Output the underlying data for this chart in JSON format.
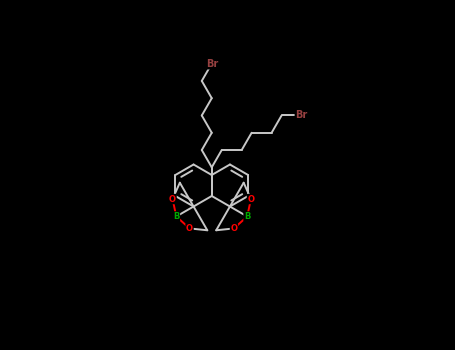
{
  "bg_color": "#000000",
  "bond_color": "#c8c8c8",
  "bond_width": 1.4,
  "atom_colors": {
    "Br": "#964040",
    "O": "#ff0000",
    "B": "#00aa00",
    "C": "#c8c8c8"
  },
  "figsize": [
    4.55,
    3.5
  ],
  "dpi": 100,
  "xlim": [
    0.0,
    1.0
  ],
  "ylim": [
    0.0,
    1.0
  ]
}
